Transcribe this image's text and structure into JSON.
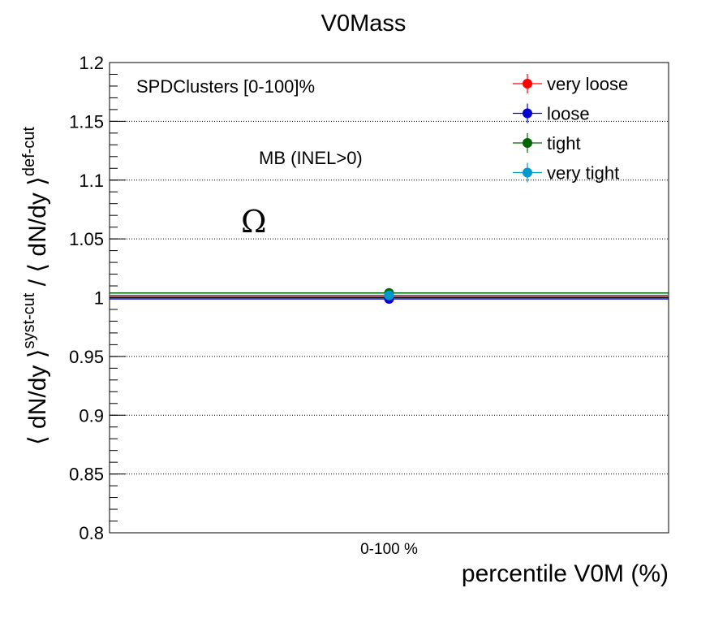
{
  "chart_data": {
    "type": "scatter",
    "title": "V0Mass",
    "xlabel": "percentile V0M (%)",
    "ylabel": {
      "part1": "⟨ dN/dy ⟩",
      "sup1": "syst-cut",
      "separator": " / ",
      "part2": "⟨ dN/dy ⟩",
      "sup2": "def-cut"
    },
    "categories": [
      "0-100 %"
    ],
    "ylim": [
      0.8,
      1.2
    ],
    "yticks": [
      0.8,
      0.85,
      0.9,
      0.95,
      1,
      1.05,
      1.1,
      1.15,
      1.2
    ],
    "ytick_labels": [
      "0.8",
      "0.85",
      "0.9",
      "0.95",
      "1",
      "1.05",
      "1.1",
      "1.15",
      "1.2"
    ],
    "grid": "horizontal",
    "legend_position": "top-right",
    "series": [
      {
        "name": "very loose",
        "color": "#ff0000",
        "values": [
          1.001
        ]
      },
      {
        "name": "loose",
        "color": "#0000cc",
        "values": [
          0.999
        ]
      },
      {
        "name": "tight",
        "color": "#006600",
        "values": [
          1.004
        ]
      },
      {
        "name": "very tight",
        "color": "#0099cc",
        "values": [
          1.002
        ]
      }
    ],
    "annotations": [
      {
        "id": "selection",
        "text": "SPDClusters [0-100]%"
      },
      {
        "id": "event-class",
        "text": "MB (INEL>0)"
      },
      {
        "id": "particle",
        "text": "Ω"
      }
    ]
  }
}
